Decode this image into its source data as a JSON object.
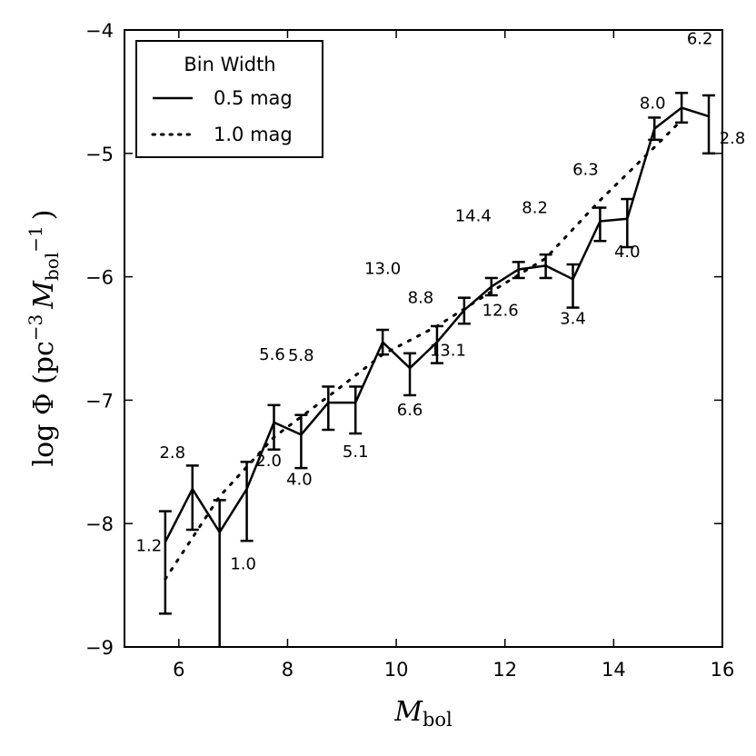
{
  "chart_data": {
    "type": "line",
    "title": "",
    "xlabel": {
      "main": "M",
      "sub": "bol"
    },
    "ylabel": {
      "prefix": "log Φ (pc",
      "sup1": "−3",
      "m": "M",
      "sub": "bol",
      "sup2": "−1",
      "suffix": ")"
    },
    "xlim": [
      5,
      16
    ],
    "ylim": [
      -9,
      -4
    ],
    "xticks": [
      6,
      8,
      10,
      12,
      14,
      16
    ],
    "xtick_labels": [
      "6",
      "8",
      "10",
      "12",
      "14",
      "16"
    ],
    "yticks": [
      -9,
      -8,
      -7,
      -6,
      -5,
      -4
    ],
    "ytick_labels": [
      "−9",
      "−8",
      "−7",
      "−6",
      "−5",
      "−4"
    ],
    "legend": {
      "title": "Bin Width",
      "position": "top-left",
      "entries": [
        "0.5 mag",
        "1.0 mag"
      ]
    },
    "series": [
      {
        "name": "0.5 mag",
        "style": "solid",
        "x": [
          5.75,
          6.25,
          6.75,
          7.25,
          7.75,
          8.25,
          8.75,
          9.25,
          9.75,
          10.25,
          10.75,
          11.25,
          11.75,
          12.25,
          12.75,
          13.25,
          13.75,
          14.25,
          14.75,
          15.25,
          15.75
        ],
        "y": [
          -8.15,
          -7.72,
          -8.07,
          -7.72,
          -7.18,
          -7.28,
          -7.02,
          -7.02,
          -6.53,
          -6.74,
          -6.53,
          -6.27,
          -6.08,
          -5.94,
          -5.91,
          -6.02,
          -5.55,
          -5.53,
          -4.8,
          -4.63,
          -4.7
        ],
        "err_low": [
          0.58,
          0.33,
          1.1,
          0.42,
          0.22,
          0.27,
          0.22,
          0.25,
          0.1,
          0.22,
          0.17,
          0.11,
          0.07,
          0.07,
          0.1,
          0.23,
          0.16,
          0.23,
          0.09,
          0.12,
          0.3
        ],
        "err_high": [
          0.25,
          0.19,
          0.26,
          0.22,
          0.14,
          0.16,
          0.13,
          0.13,
          0.1,
          0.12,
          0.13,
          0.1,
          0.07,
          0.06,
          0.09,
          0.12,
          0.11,
          0.16,
          0.09,
          0.12,
          0.17
        ],
        "labels": [
          "1.2",
          "2.8",
          "1.0",
          "2.0",
          "5.6",
          "4.0",
          "5.8",
          "5.1",
          "13.0",
          "6.6",
          "8.8",
          "13.1",
          "14.4",
          "12.6",
          "8.2",
          "3.4",
          "6.3",
          "4.0",
          "8.0",
          "6.2",
          "2.8"
        ]
      },
      {
        "name": "1.0 mag",
        "style": "dotted",
        "x": [
          5.75,
          6.75,
          7.75,
          8.75,
          9.75,
          10.75,
          11.75,
          12.75,
          13.75,
          14.75,
          15.25
        ],
        "y": [
          -8.45,
          -7.78,
          -7.3,
          -6.97,
          -6.63,
          -6.4,
          -6.12,
          -5.85,
          -5.38,
          -4.95,
          -4.73
        ]
      }
    ]
  }
}
